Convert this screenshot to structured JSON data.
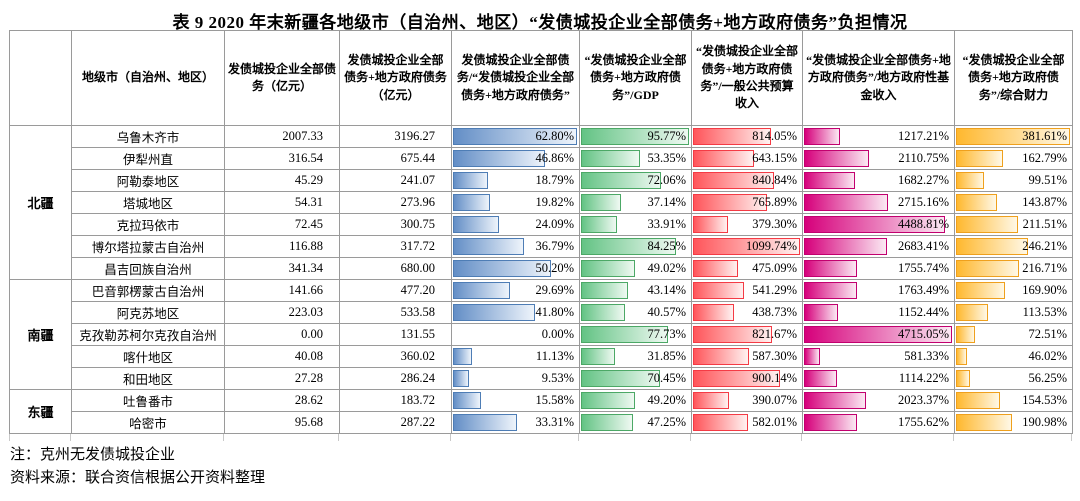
{
  "title": "表 9  2020 年末新疆各地级市（自治州、地区）“发债城投企业全部债务+地方政府债务”负担情况",
  "columns": [
    "",
    "地级市（自治州、地区）",
    "发债城投企业全部债务（亿元）",
    "发债城投企业全部债务+地方政府债务（亿元）",
    "发债城投企业全部债务/“发债城投企业全部债务+地方政府债务”",
    "“发债城投企业全部债务+地方政府债务”/GDP",
    "“发债城投企业全部债务+地方政府债务”/一般公共预算收入",
    "“发债城投企业全部债务+地方政府债务”/地方政府性基金收入",
    "“发债城投企业全部债务+地方政府债务”/综合财力"
  ],
  "groups": [
    {
      "label": "北疆",
      "span": 7
    },
    {
      "label": "南疆",
      "span": 5
    },
    {
      "label": "东疆",
      "span": 2
    }
  ],
  "rows": [
    {
      "city": "乌鲁木齐市",
      "debt": "2007.33",
      "debt_plus_gov": "3196.27",
      "ratios": [
        62.8,
        95.77,
        814.05,
        1217.21,
        381.61
      ]
    },
    {
      "city": "伊犁州直",
      "debt": "316.54",
      "debt_plus_gov": "675.44",
      "ratios": [
        46.86,
        53.35,
        643.15,
        2110.75,
        162.79
      ]
    },
    {
      "city": "阿勒泰地区",
      "debt": "45.29",
      "debt_plus_gov": "241.07",
      "ratios": [
        18.79,
        72.06,
        840.84,
        1682.27,
        99.51
      ]
    },
    {
      "city": "塔城地区",
      "debt": "54.31",
      "debt_plus_gov": "273.96",
      "ratios": [
        19.82,
        37.14,
        765.89,
        2715.16,
        143.87
      ]
    },
    {
      "city": "克拉玛依市",
      "debt": "72.45",
      "debt_plus_gov": "300.75",
      "ratios": [
        24.09,
        33.91,
        379.3,
        4488.81,
        211.51
      ]
    },
    {
      "city": "博尔塔拉蒙古自治州",
      "debt": "116.88",
      "debt_plus_gov": "317.72",
      "ratios": [
        36.79,
        84.25,
        1099.74,
        2683.41,
        246.21
      ]
    },
    {
      "city": "昌吉回族自治州",
      "debt": "341.34",
      "debt_plus_gov": "680.00",
      "ratios": [
        50.2,
        49.02,
        475.09,
        1755.74,
        216.71
      ]
    },
    {
      "city": "巴音郭楞蒙古自治州",
      "debt": "141.66",
      "debt_plus_gov": "477.20",
      "ratios": [
        29.69,
        43.14,
        541.29,
        1763.49,
        169.9
      ]
    },
    {
      "city": "阿克苏地区",
      "debt": "223.03",
      "debt_plus_gov": "533.58",
      "ratios": [
        41.8,
        40.57,
        438.73,
        1152.44,
        113.53
      ]
    },
    {
      "city": "克孜勒苏柯尔克孜自治州",
      "debt": "0.00",
      "debt_plus_gov": "131.55",
      "ratios": [
        0.0,
        77.73,
        821.67,
        4715.05,
        72.51
      ]
    },
    {
      "city": "喀什地区",
      "debt": "40.08",
      "debt_plus_gov": "360.02",
      "ratios": [
        11.13,
        31.85,
        587.3,
        581.33,
        46.02
      ]
    },
    {
      "city": "和田地区",
      "debt": "27.28",
      "debt_plus_gov": "286.24",
      "ratios": [
        9.53,
        70.45,
        900.14,
        1114.22,
        56.25
      ]
    },
    {
      "city": "吐鲁番市",
      "debt": "28.62",
      "debt_plus_gov": "183.72",
      "ratios": [
        15.58,
        49.2,
        390.07,
        2023.37,
        154.53
      ]
    },
    {
      "city": "哈密市",
      "debt": "95.68",
      "debt_plus_gov": "287.22",
      "ratios": [
        33.31,
        47.25,
        582.01,
        1755.62,
        190.98
      ]
    }
  ],
  "bar_styles": [
    {
      "name": "blue",
      "fill": "#638EC6",
      "fade": "#EEF4FB",
      "border": "#4E7DB5"
    },
    {
      "name": "green",
      "fill": "#63C384",
      "fade": "#EFF9F2",
      "border": "#4CA866"
    },
    {
      "name": "red",
      "fill": "#FF555A",
      "fade": "#FFF2F1",
      "border": "#F43B45"
    },
    {
      "name": "magenta",
      "fill": "#D6007B",
      "fade": "#FBE9F3",
      "border": "#C2006F"
    },
    {
      "name": "gold",
      "fill": "#FFB82E",
      "fade": "#FFF8E6",
      "border": "#EFA01D"
    }
  ],
  "notes": [
    "注：克州无发债城投企业",
    "资料来源：联合资信根据公开资料整理"
  ]
}
